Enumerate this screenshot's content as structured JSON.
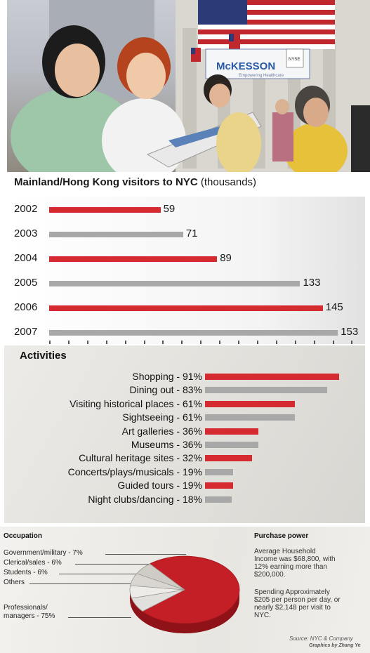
{
  "photo": {
    "sign_text": "McKESSON",
    "sign_sub": "Empowering Healthcare",
    "board_text": "NYSE"
  },
  "visitors": {
    "title": "Mainland/Hong Kong visitors to NYC",
    "unit": "(thousands)"
  },
  "activities_chart": {
    "title": "Activities"
  },
  "occupation": {
    "title": "Occupation",
    "labels": [
      "Government/military - 7%",
      "Clerical/sales - 6%",
      "Students - 6%",
      "Others",
      "Professionals/",
      "managers - 75%"
    ]
  },
  "purchase_power": {
    "title": "Purchase power",
    "para1": [
      "Average Household",
      "Income was $68,800, with",
      "12% earning more than",
      "$200,000."
    ],
    "para2": [
      "Spending Approximately",
      "$205 per person per day, or",
      "nearly $2,148 per visit to",
      "NYC."
    ]
  },
  "source": "Source: NYC & Company",
  "credit": "Graphics by Zhang Ye",
  "colors": {
    "red": "#d42a30",
    "gray": "#a8a8a8"
  },
  "chart_data": [
    {
      "type": "bar",
      "title": "Mainland/Hong Kong visitors to NYC",
      "unit": "(thousands)",
      "orientation": "horizontal",
      "categories": [
        "2002",
        "2003",
        "2004",
        "2005",
        "2006",
        "2007"
      ],
      "values": [
        59,
        71,
        89,
        133,
        145,
        153
      ],
      "value_labels": [
        "59",
        "71",
        "89",
        "133",
        "145",
        "153"
      ],
      "bar_colors": [
        "red",
        "gray",
        "red",
        "gray",
        "red",
        "gray"
      ],
      "xlim": [
        0,
        160
      ]
    },
    {
      "type": "bar",
      "title": "Activities",
      "orientation": "horizontal",
      "categories": [
        "Shopping - 91%",
        "Dining out - 83%",
        "Visiting historical places - 61%",
        "Sightseeing - 61%",
        "Art galleries - 36%",
        "Museums - 36%",
        "Cultural heritage sites - 32%",
        "Concerts/plays/musicals - 19%",
        "Guided tours - 19%",
        "Night clubs/dancing - 18%"
      ],
      "values": [
        91,
        83,
        61,
        61,
        36,
        36,
        32,
        19,
        19,
        18
      ],
      "bar_colors": [
        "red",
        "gray",
        "red",
        "gray",
        "red",
        "gray",
        "red",
        "gray",
        "red",
        "gray"
      ],
      "xlim": [
        0,
        100
      ]
    },
    {
      "type": "pie",
      "title": "Occupation",
      "categories": [
        "Professionals/managers",
        "Government/military",
        "Clerical/sales",
        "Students",
        "Others"
      ],
      "values": [
        75,
        7,
        6,
        6,
        6
      ]
    }
  ]
}
